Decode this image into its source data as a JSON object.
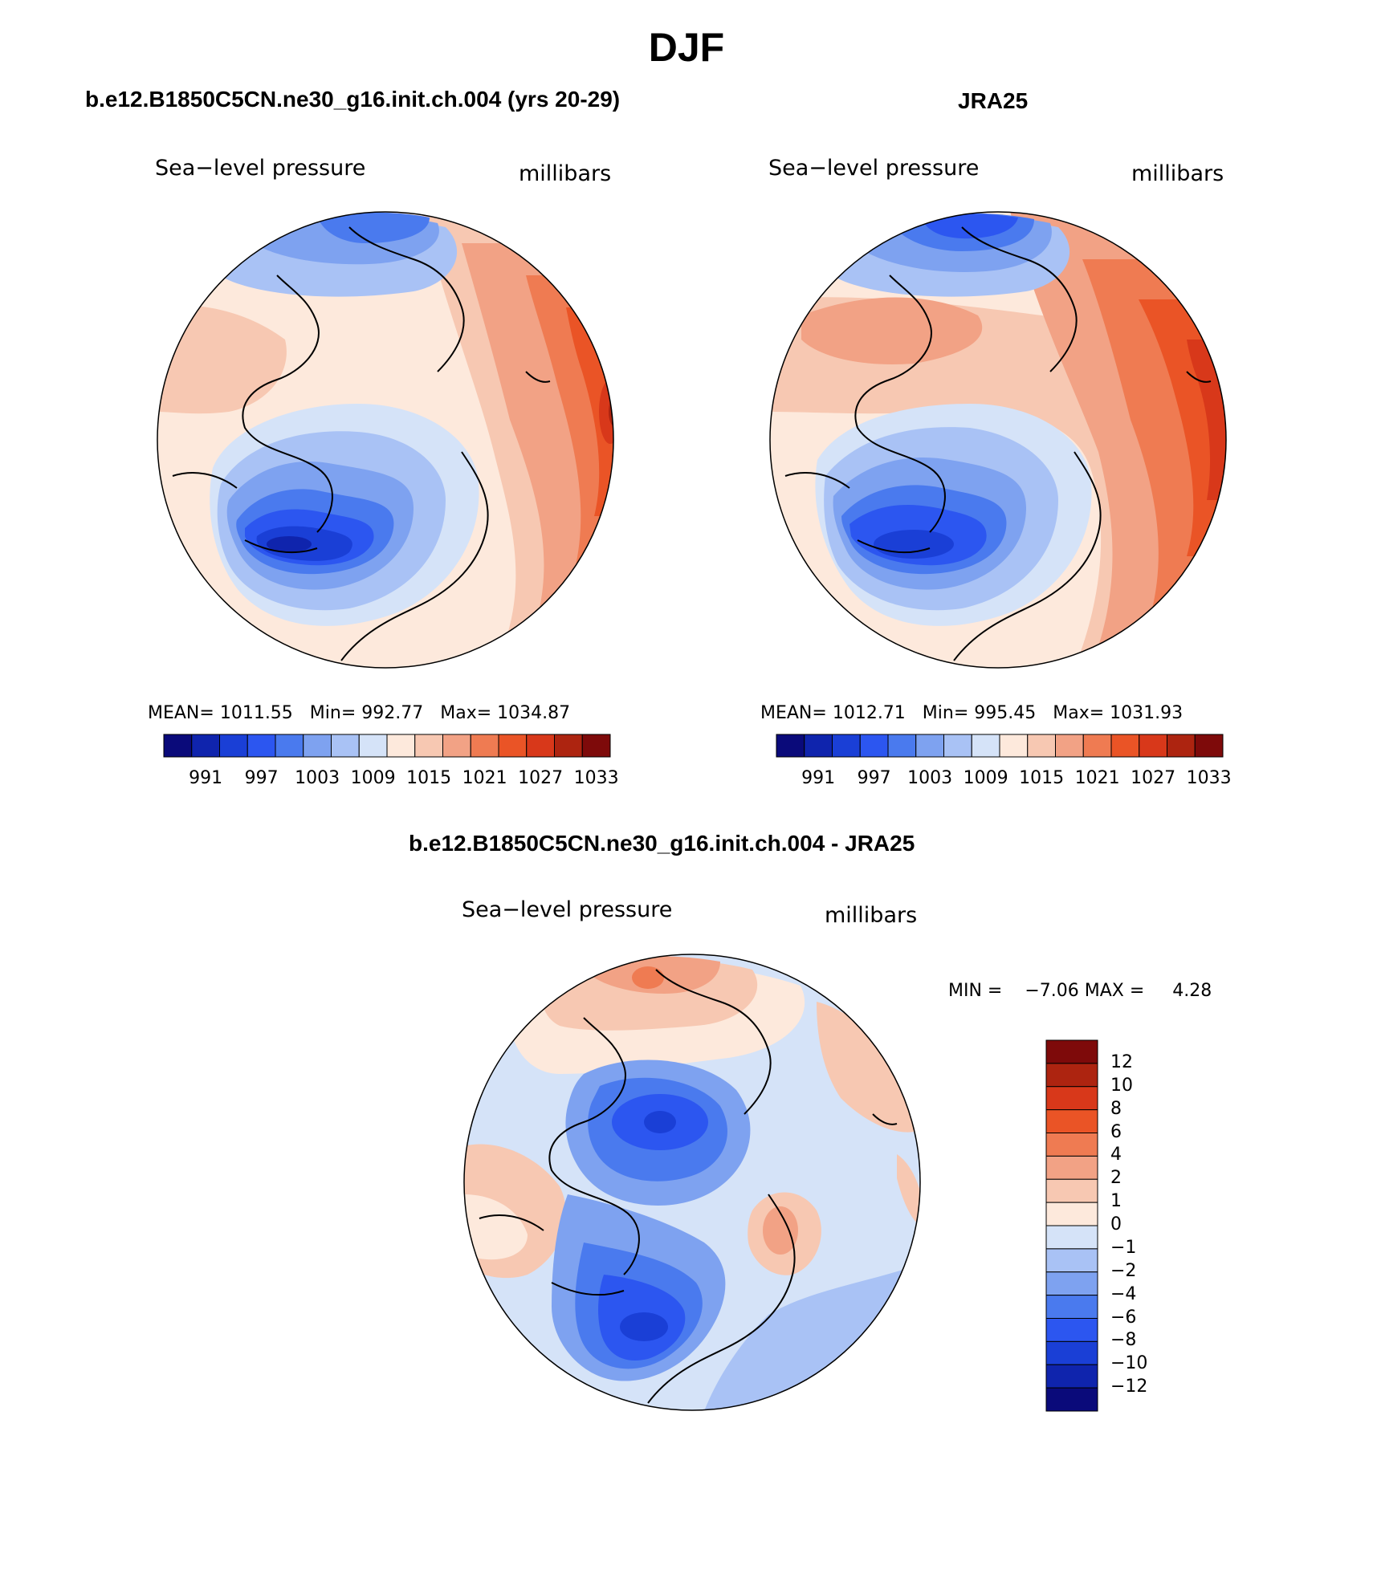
{
  "main_title": "DJF",
  "colors": {
    "pressure_scale": [
      "#0a0a7a",
      "#0f24ad",
      "#1a3fd6",
      "#2c56f0",
      "#4a7aee",
      "#7ea2f0",
      "#a9c2f5",
      "#d5e3f8",
      "#fde9dc",
      "#f7c8b2",
      "#f2a285",
      "#ef7b52",
      "#ea5426",
      "#d8381a",
      "#ad2410",
      "#7e0a0a"
    ],
    "diff_scale": [
      "#0a0a7a",
      "#0f24ad",
      "#1a3fd6",
      "#2c56f0",
      "#4a7aee",
      "#7ea2f0",
      "#a9c2f5",
      "#d5e3f8",
      "#fde9dc",
      "#f7c8b2",
      "#f2a285",
      "#ef7b52",
      "#ea5426",
      "#d8381a",
      "#ad2410",
      "#7e0a0a"
    ],
    "land_outline": "#000000"
  },
  "panels": [
    {
      "title": "b.e12.B1850C5CN.ne30_g16.init.ch.004 (yrs 20-29)",
      "left_label": "Sea−level pressure",
      "right_label": "millibars",
      "stats": {
        "mean_label": "MEAN=",
        "mean": "1011.55",
        "min_label": "Min=",
        "min": "992.77",
        "max_label": "Max=",
        "max": "1034.87"
      },
      "colorbar_labels": [
        "991",
        "997",
        "1003",
        "1009",
        "1015",
        "1021",
        "1027",
        "1033"
      ]
    },
    {
      "title": "JRA25",
      "left_label": "Sea−level pressure",
      "right_label": "millibars",
      "stats": {
        "mean_label": "MEAN=",
        "mean": "1012.71",
        "min_label": "Min=",
        "min": "995.45",
        "max_label": "Max=",
        "max": "1031.93"
      },
      "colorbar_labels": [
        "991",
        "997",
        "1003",
        "1009",
        "1015",
        "1021",
        "1027",
        "1033"
      ]
    },
    {
      "title": "b.e12.B1850C5CN.ne30_g16.init.ch.004 - JRA25",
      "left_label": "Sea−level pressure",
      "right_label": "millibars",
      "stats": {
        "min_label": "MIN =",
        "min": "−7.06",
        "max_label": "MAX =",
        "max": "4.28"
      },
      "colorbar_labels": [
        "12",
        "10",
        "8",
        "6",
        "4",
        "2",
        "1",
        "0",
        "−1",
        "−2",
        "−4",
        "−6",
        "−8",
        "−10",
        "−12"
      ]
    }
  ]
}
